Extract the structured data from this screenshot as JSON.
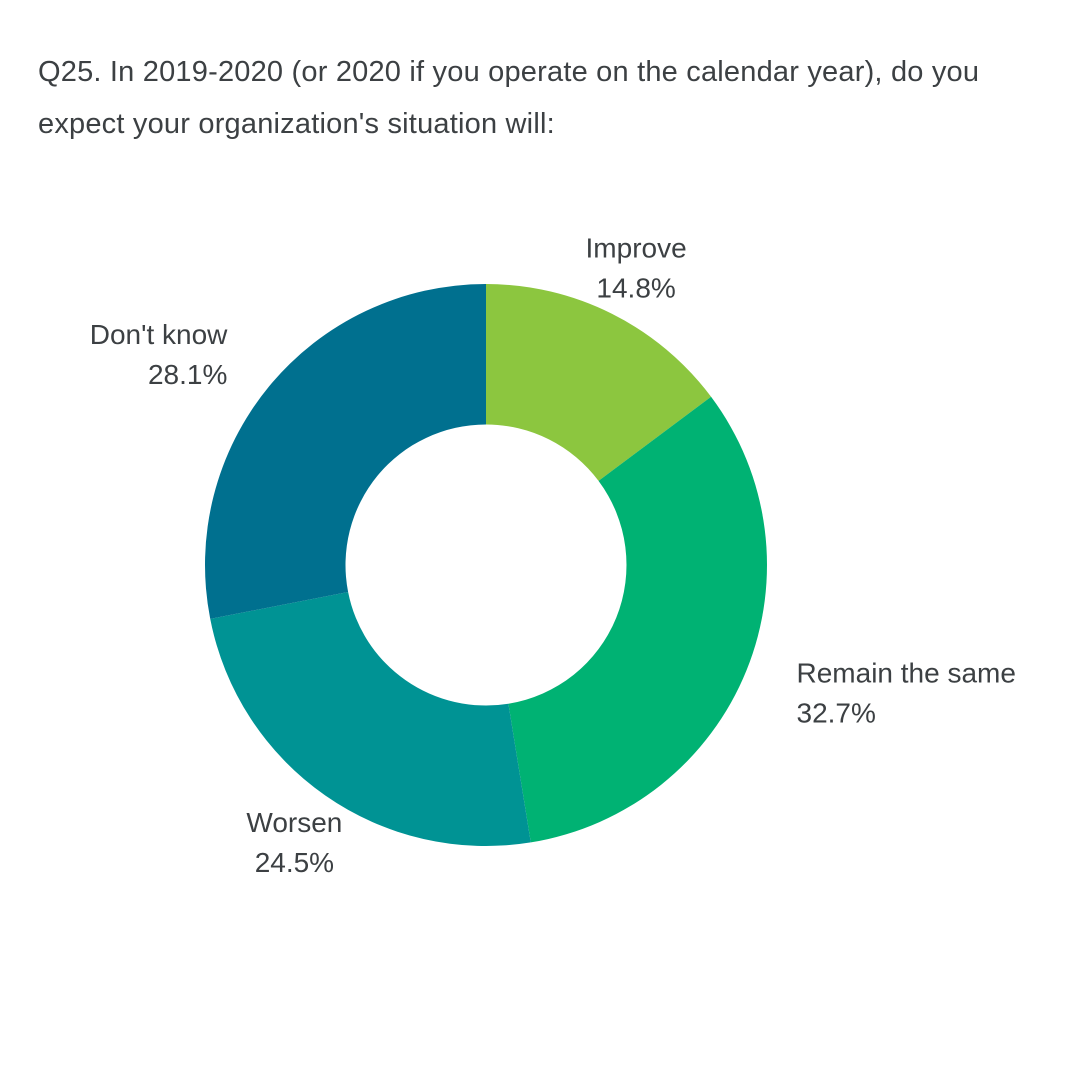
{
  "chart_data": {
    "type": "pie",
    "subtype": "donut",
    "title": "Q25. In 2019-2020 (or 2020 if you operate on the calendar year), do you expect your organization's situation will:",
    "categories": [
      "Improve",
      "Remain the same",
      "Worsen",
      "Don't know"
    ],
    "values": [
      14.8,
      32.7,
      24.5,
      28.1
    ],
    "value_labels": [
      "14.8%",
      "32.7%",
      "24.5%",
      "28.1%"
    ],
    "colors": [
      "#8cc63f",
      "#00b273",
      "#009394",
      "#00708f"
    ],
    "start_angle_deg": 0,
    "direction": "clockwise",
    "inner_radius_ratio": 0.5,
    "labels_position": "outside",
    "legend": "none",
    "background": "#ffffff",
    "text_color": "#3c4043"
  }
}
